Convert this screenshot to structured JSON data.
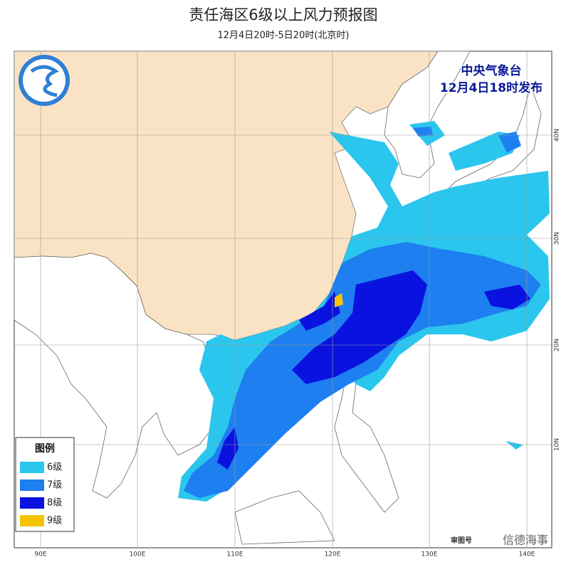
{
  "header": {
    "title": "责任海区6级以上风力预报图",
    "subtitle": "12月4日20时-5日20时(北京时)"
  },
  "issuer": {
    "name": "中央气象台",
    "time": "12月4日18时发布"
  },
  "legend": {
    "title": "图例",
    "items": [
      {
        "label": "6级",
        "color": "#2bc6ee"
      },
      {
        "label": "7级",
        "color": "#1e7ff0"
      },
      {
        "label": "8级",
        "color": "#0a12e0"
      },
      {
        "label": "9级",
        "color": "#f5c400"
      }
    ]
  },
  "axes": {
    "longitude": [
      "90E",
      "100E",
      "110E",
      "120E",
      "130E",
      "140E"
    ],
    "latitude": [
      "40N",
      "30N",
      "20N",
      "10N"
    ]
  },
  "footer": {
    "map_number": "审图号",
    "watermark": "信德海事"
  }
}
